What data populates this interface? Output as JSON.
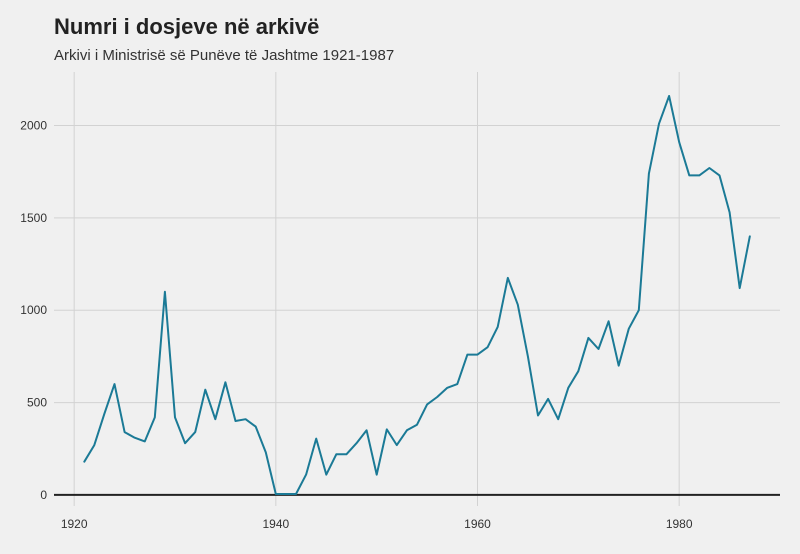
{
  "chart_data": {
    "type": "line",
    "title": "Numri i dosjeve në arkivë",
    "subtitle": "Arkivi i Ministrisë së Punëve të Jashtme 1921-1987",
    "xlabel": "",
    "ylabel": "",
    "xlim": [
      1918,
      1990
    ],
    "ylim": [
      -60,
      2290
    ],
    "x_ticks": [
      1920,
      1940,
      1960,
      1980
    ],
    "y_ticks": [
      0,
      500,
      1000,
      1500,
      2000
    ],
    "x_tick_labels": [
      "1920",
      "1940",
      "1960",
      "1980"
    ],
    "y_tick_labels": [
      "0",
      "500",
      "1000",
      "1500",
      "2000"
    ],
    "grid": true,
    "legend": "none",
    "line_color": "#1b7a96",
    "series": [
      {
        "x": [
          1921,
          1922,
          1923,
          1924,
          1925,
          1926,
          1927,
          1928,
          1929,
          1930,
          1931,
          1932,
          1933,
          1934,
          1935,
          1936,
          1937,
          1938,
          1939,
          1940,
          1941,
          1942,
          1943,
          1944,
          1945,
          1946,
          1947,
          1948,
          1949,
          1950,
          1951,
          1952,
          1953,
          1954,
          1955,
          1956,
          1957,
          1958,
          1959,
          1960,
          1961,
          1962,
          1963,
          1964,
          1965,
          1966,
          1967,
          1968,
          1969,
          1970,
          1971,
          1972,
          1973,
          1974,
          1975,
          1976,
          1977,
          1978,
          1979,
          1980,
          1981,
          1982,
          1983,
          1984,
          1985,
          1986,
          1987
        ],
        "y": [
          180,
          270,
          440,
          600,
          340,
          310,
          290,
          420,
          1100,
          420,
          280,
          340,
          570,
          410,
          610,
          400,
          410,
          370,
          230,
          5,
          5,
          5,
          110,
          305,
          110,
          220,
          220,
          280,
          350,
          110,
          355,
          270,
          350,
          380,
          490,
          530,
          580,
          600,
          760,
          760,
          800,
          910,
          1175,
          1030,
          750,
          430,
          520,
          410,
          580,
          670,
          850,
          790,
          940,
          700,
          900,
          1000,
          1740,
          2010,
          2160,
          1910,
          1730,
          1730,
          1770,
          1730,
          1530,
          1120,
          1400
        ]
      }
    ]
  }
}
